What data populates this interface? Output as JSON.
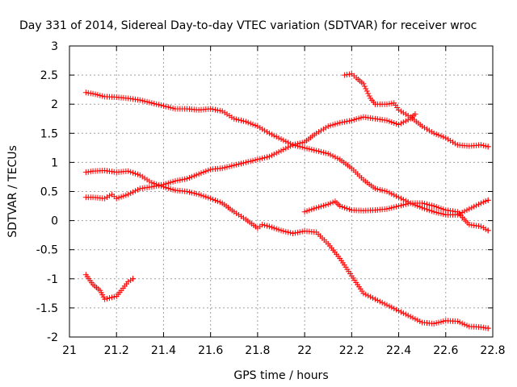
{
  "chart_data": {
    "type": "scatter",
    "title": "Day 331 of 2014, Sidereal Day-to-day VTEC variation (SDTVAR) for receiver wroc",
    "xlabel": "GPS time / hours",
    "ylabel": "SDTVAR / TECUs",
    "xlim": [
      21,
      22.8
    ],
    "ylim": [
      -2,
      3
    ],
    "xticks": [
      "21",
      "21.2",
      "21.4",
      "21.6",
      "21.8",
      "22",
      "22.2",
      "22.4",
      "22.6",
      "22.8"
    ],
    "yticks": [
      "-2",
      "-1.5",
      "-1",
      "-0.5",
      "0",
      "0.5",
      "1",
      "1.5",
      "2",
      "2.5",
      "3"
    ],
    "xtick_values": [
      21,
      21.2,
      21.4,
      21.6,
      21.8,
      22,
      22.2,
      22.4,
      22.6,
      22.8
    ],
    "ytick_values": [
      -2,
      -1.5,
      -1,
      -0.5,
      0,
      0.5,
      1,
      1.5,
      2,
      2.5,
      3
    ],
    "grid": true,
    "marker": "+",
    "color": "#ff0000",
    "series": [
      {
        "name": "series-1",
        "points": [
          [
            21.07,
            2.2
          ],
          [
            21.1,
            2.18
          ],
          [
            21.15,
            2.13
          ],
          [
            21.2,
            2.12
          ],
          [
            21.25,
            2.1
          ],
          [
            21.3,
            2.07
          ],
          [
            21.35,
            2.02
          ],
          [
            21.4,
            1.97
          ],
          [
            21.45,
            1.92
          ],
          [
            21.5,
            1.92
          ],
          [
            21.55,
            1.9
          ],
          [
            21.6,
            1.92
          ],
          [
            21.65,
            1.88
          ],
          [
            21.7,
            1.75
          ],
          [
            21.75,
            1.7
          ],
          [
            21.8,
            1.62
          ],
          [
            21.85,
            1.5
          ],
          [
            21.9,
            1.4
          ],
          [
            21.95,
            1.3
          ],
          [
            22.0,
            1.25
          ],
          [
            22.05,
            1.2
          ],
          [
            22.1,
            1.15
          ],
          [
            22.15,
            1.05
          ],
          [
            22.2,
            0.9
          ],
          [
            22.25,
            0.7
          ],
          [
            22.3,
            0.55
          ],
          [
            22.35,
            0.5
          ],
          [
            22.4,
            0.4
          ],
          [
            22.45,
            0.3
          ],
          [
            22.5,
            0.22
          ],
          [
            22.55,
            0.15
          ],
          [
            22.6,
            0.1
          ],
          [
            22.65,
            0.1
          ],
          [
            22.7,
            0.2
          ],
          [
            22.75,
            0.3
          ],
          [
            22.78,
            0.35
          ]
        ]
      },
      {
        "name": "series-2",
        "points": [
          [
            21.07,
            0.83
          ],
          [
            21.1,
            0.85
          ],
          [
            21.15,
            0.86
          ],
          [
            21.2,
            0.83
          ],
          [
            21.25,
            0.85
          ],
          [
            21.3,
            0.78
          ],
          [
            21.35,
            0.65
          ],
          [
            21.4,
            0.58
          ],
          [
            21.45,
            0.52
          ],
          [
            21.5,
            0.5
          ],
          [
            21.55,
            0.45
          ],
          [
            21.6,
            0.38
          ],
          [
            21.65,
            0.3
          ],
          [
            21.7,
            0.15
          ],
          [
            21.75,
            0.02
          ],
          [
            21.8,
            -0.13
          ],
          [
            21.82,
            -0.07
          ],
          [
            21.85,
            -0.1
          ],
          [
            21.9,
            -0.17
          ],
          [
            21.95,
            -0.22
          ],
          [
            22.0,
            -0.18
          ],
          [
            22.05,
            -0.2
          ],
          [
            22.1,
            -0.4
          ],
          [
            22.15,
            -0.65
          ],
          [
            22.2,
            -0.95
          ],
          [
            22.25,
            -1.25
          ],
          [
            22.3,
            -1.35
          ],
          [
            22.35,
            -1.45
          ],
          [
            22.4,
            -1.55
          ],
          [
            22.45,
            -1.65
          ],
          [
            22.5,
            -1.75
          ],
          [
            22.55,
            -1.77
          ],
          [
            22.6,
            -1.72
          ],
          [
            22.65,
            -1.73
          ],
          [
            22.7,
            -1.82
          ],
          [
            22.75,
            -1.83
          ],
          [
            22.78,
            -1.85
          ]
        ]
      },
      {
        "name": "series-3",
        "points": [
          [
            21.07,
            0.4
          ],
          [
            21.1,
            0.4
          ],
          [
            21.15,
            0.38
          ],
          [
            21.18,
            0.45
          ],
          [
            21.2,
            0.38
          ],
          [
            21.25,
            0.45
          ],
          [
            21.3,
            0.55
          ],
          [
            21.35,
            0.58
          ],
          [
            21.4,
            0.62
          ],
          [
            21.45,
            0.68
          ],
          [
            21.5,
            0.72
          ],
          [
            21.55,
            0.8
          ],
          [
            21.6,
            0.88
          ],
          [
            21.65,
            0.9
          ],
          [
            21.7,
            0.95
          ],
          [
            21.75,
            1.0
          ],
          [
            21.8,
            1.05
          ],
          [
            21.85,
            1.1
          ],
          [
            21.9,
            1.2
          ],
          [
            21.95,
            1.3
          ],
          [
            22.0,
            1.35
          ],
          [
            22.05,
            1.5
          ],
          [
            22.1,
            1.62
          ],
          [
            22.15,
            1.68
          ],
          [
            22.2,
            1.72
          ],
          [
            22.25,
            1.78
          ],
          [
            22.3,
            1.75
          ],
          [
            22.35,
            1.72
          ],
          [
            22.4,
            1.65
          ],
          [
            22.45,
            1.75
          ],
          [
            22.47,
            1.83
          ]
        ]
      },
      {
        "name": "series-4",
        "points": [
          [
            22.0,
            0.15
          ],
          [
            22.05,
            0.22
          ],
          [
            22.1,
            0.28
          ],
          [
            22.13,
            0.33
          ],
          [
            22.15,
            0.25
          ],
          [
            22.2,
            0.18
          ],
          [
            22.25,
            0.17
          ],
          [
            22.3,
            0.18
          ],
          [
            22.35,
            0.2
          ],
          [
            22.4,
            0.25
          ],
          [
            22.45,
            0.3
          ],
          [
            22.5,
            0.3
          ],
          [
            22.55,
            0.25
          ],
          [
            22.6,
            0.18
          ],
          [
            22.65,
            0.15
          ],
          [
            22.7,
            -0.07
          ],
          [
            22.75,
            -0.1
          ],
          [
            22.78,
            -0.17
          ]
        ]
      },
      {
        "name": "series-5",
        "points": [
          [
            22.17,
            2.5
          ],
          [
            22.2,
            2.52
          ],
          [
            22.22,
            2.45
          ],
          [
            22.25,
            2.35
          ],
          [
            22.28,
            2.1
          ],
          [
            22.3,
            2.0
          ],
          [
            22.35,
            2.0
          ],
          [
            22.38,
            2.02
          ],
          [
            22.4,
            1.9
          ],
          [
            22.45,
            1.78
          ],
          [
            22.5,
            1.62
          ],
          [
            22.55,
            1.5
          ],
          [
            22.6,
            1.42
          ],
          [
            22.65,
            1.3
          ],
          [
            22.7,
            1.28
          ],
          [
            22.75,
            1.3
          ],
          [
            22.78,
            1.27
          ]
        ]
      },
      {
        "name": "series-6",
        "points": [
          [
            21.07,
            -0.93
          ],
          [
            21.1,
            -1.1
          ],
          [
            21.13,
            -1.2
          ],
          [
            21.15,
            -1.35
          ],
          [
            21.2,
            -1.3
          ],
          [
            21.22,
            -1.2
          ],
          [
            21.25,
            -1.05
          ],
          [
            21.27,
            -1.0
          ]
        ]
      }
    ]
  }
}
